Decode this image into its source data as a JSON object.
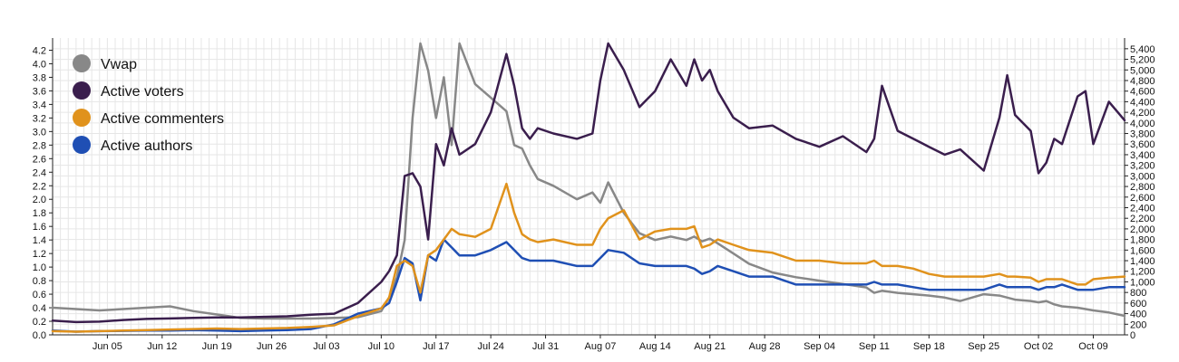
{
  "chart_data": {
    "type": "line",
    "title": "",
    "xlabel": "",
    "ylabel": "",
    "x_tick_labels": [
      "Jun 05",
      "Jun 12",
      "Jun 19",
      "Jun 26",
      "Jul 03",
      "Jul 10",
      "Jul 17",
      "Jul 24",
      "Jul 31",
      "Aug 07",
      "Aug 14",
      "Aug 21",
      "Aug 28",
      "Sep 04",
      "Sep 11",
      "Sep 18",
      "Sep 25",
      "Oct 02",
      "Oct 09"
    ],
    "x_range": [
      "May 29",
      "Oct 13"
    ],
    "left_axis": {
      "ylim": [
        0,
        4.3
      ],
      "tick_labels": [
        "0.0",
        "0.2",
        "0.4",
        "0.6",
        "0.8",
        "1.0",
        "1.2",
        "1.4",
        "1.6",
        "1.8",
        "2.0",
        "2.2",
        "2.4",
        "2.6",
        "2.8",
        "3.0",
        "3.2",
        "3.4",
        "3.6",
        "3.8",
        "4.0",
        "4.2"
      ]
    },
    "right_axis": {
      "ylim": [
        0,
        5500
      ],
      "tick_labels": [
        "0",
        "200",
        "400",
        "600",
        "800",
        "1,000",
        "1,200",
        "1,400",
        "1,600",
        "1,800",
        "2,000",
        "2,200",
        "2,400",
        "2,600",
        "2,800",
        "3,000",
        "3,200",
        "3,400",
        "3,600",
        "3,800",
        "4,000",
        "4,200",
        "4,400",
        "4,600",
        "4,800",
        "5,000",
        "5,200",
        "5,400"
      ]
    },
    "grid": true,
    "legend_position": "top-left",
    "x": [
      "May 29",
      "Jun 01",
      "Jun 04",
      "Jun 07",
      "Jun 10",
      "Jun 13",
      "Jun 16",
      "Jun 19",
      "Jun 22",
      "Jun 25",
      "Jun 28",
      "Jul 01",
      "Jul 04",
      "Jul 07",
      "Jul 10",
      "Jul 11",
      "Jul 12",
      "Jul 13",
      "Jul 14",
      "Jul 15",
      "Jul 16",
      "Jul 17",
      "Jul 18",
      "Jul 19",
      "Jul 20",
      "Jul 22",
      "Jul 24",
      "Jul 26",
      "Jul 27",
      "Jul 28",
      "Jul 29",
      "Jul 30",
      "Aug 01",
      "Aug 04",
      "Aug 06",
      "Aug 07",
      "Aug 08",
      "Aug 10",
      "Aug 12",
      "Aug 14",
      "Aug 16",
      "Aug 18",
      "Aug 19",
      "Aug 20",
      "Aug 21",
      "Aug 22",
      "Aug 24",
      "Aug 26",
      "Aug 29",
      "Sep 01",
      "Sep 04",
      "Sep 07",
      "Sep 10",
      "Sep 11",
      "Sep 12",
      "Sep 14",
      "Sep 16",
      "Sep 18",
      "Sep 20",
      "Sep 22",
      "Sep 25",
      "Sep 27",
      "Sep 28",
      "Sep 29",
      "Oct 01",
      "Oct 02",
      "Oct 03",
      "Oct 04",
      "Oct 05",
      "Oct 07",
      "Oct 08",
      "Oct 09",
      "Oct 11",
      "Oct 13"
    ],
    "series": [
      {
        "name": "Vwap",
        "color": "#888888",
        "axis": "left",
        "values": [
          0.4,
          0.38,
          0.36,
          0.38,
          0.4,
          0.42,
          0.35,
          0.3,
          0.25,
          0.24,
          0.24,
          0.24,
          0.25,
          0.26,
          0.35,
          0.55,
          0.85,
          1.4,
          3.2,
          4.3,
          3.9,
          3.2,
          3.8,
          2.8,
          4.3,
          3.7,
          3.5,
          3.3,
          2.8,
          2.75,
          2.5,
          2.3,
          2.2,
          2.0,
          2.1,
          1.95,
          2.25,
          1.8,
          1.5,
          1.4,
          1.45,
          1.4,
          1.45,
          1.38,
          1.42,
          1.35,
          1.2,
          1.05,
          0.92,
          0.85,
          0.8,
          0.75,
          0.7,
          0.62,
          0.65,
          0.62,
          0.6,
          0.58,
          0.55,
          0.5,
          0.6,
          0.58,
          0.55,
          0.52,
          0.5,
          0.48,
          0.5,
          0.45,
          0.42,
          0.4,
          0.38,
          0.36,
          0.33,
          0.28
        ]
      },
      {
        "name": "Active voters",
        "color": "#3a1e4d",
        "axis": "right",
        "values": [
          270,
          240,
          250,
          280,
          300,
          310,
          320,
          330,
          330,
          340,
          350,
          380,
          400,
          600,
          1000,
          1200,
          1500,
          3000,
          3050,
          2800,
          1800,
          3600,
          3200,
          3900,
          3400,
          3600,
          4200,
          5300,
          4700,
          3900,
          3700,
          3900,
          3800,
          3700,
          3800,
          4800,
          5500,
          5000,
          4300,
          4600,
          5200,
          4700,
          5200,
          4800,
          5000,
          4600,
          4100,
          3900,
          3950,
          3700,
          3550,
          3750,
          3450,
          3700,
          4700,
          3850,
          3700,
          3550,
          3400,
          3500,
          3100,
          4100,
          4900,
          4150,
          3850,
          3050,
          3250,
          3700,
          3600,
          4500,
          4600,
          3600,
          4400,
          4050
        ]
      },
      {
        "name": "Active commenters",
        "color": "#e0921c",
        "axis": "right",
        "values": [
          70,
          60,
          70,
          80,
          90,
          100,
          110,
          120,
          110,
          120,
          130,
          150,
          180,
          350,
          500,
          700,
          1300,
          1400,
          1300,
          800,
          1500,
          1600,
          1800,
          2000,
          1900,
          1850,
          2000,
          2850,
          2300,
          1900,
          1800,
          1750,
          1800,
          1700,
          1700,
          2000,
          2200,
          2350,
          1800,
          1950,
          2000,
          2000,
          2050,
          1650,
          1700,
          1800,
          1700,
          1600,
          1550,
          1400,
          1400,
          1350,
          1350,
          1400,
          1300,
          1300,
          1250,
          1150,
          1100,
          1100,
          1100,
          1150,
          1100,
          1100,
          1080,
          1000,
          1050,
          1050,
          1050,
          950,
          950,
          1050,
          1080,
          1100
        ]
      },
      {
        "name": "Active authors",
        "color": "#1f4fb4",
        "axis": "right",
        "values": [
          80,
          60,
          70,
          75,
          80,
          80,
          90,
          80,
          70,
          80,
          90,
          110,
          200,
          400,
          500,
          600,
          1000,
          1450,
          1350,
          650,
          1500,
          1400,
          1800,
          1650,
          1500,
          1500,
          1600,
          1750,
          1600,
          1450,
          1400,
          1400,
          1400,
          1300,
          1300,
          1450,
          1600,
          1550,
          1350,
          1300,
          1300,
          1300,
          1250,
          1150,
          1200,
          1300,
          1200,
          1100,
          1100,
          950,
          950,
          950,
          950,
          1000,
          950,
          950,
          900,
          850,
          850,
          850,
          850,
          950,
          900,
          900,
          900,
          850,
          900,
          900,
          950,
          850,
          850,
          850,
          900,
          900
        ]
      }
    ]
  }
}
